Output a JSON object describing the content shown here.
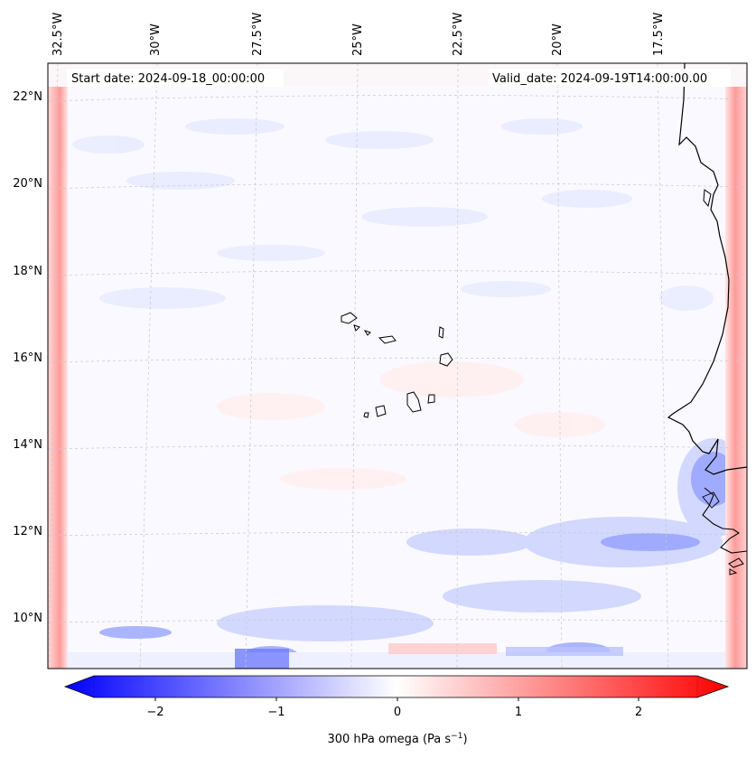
{
  "map": {
    "start_label": "Start date: 2024-09-18_00:00:00",
    "valid_label": "Valid_date: 2024-09-19T14:00:00.00",
    "lon_labels": [
      "32.5°W",
      "30°W",
      "27.5°W",
      "25°W",
      "22.5°W",
      "20°W",
      "17.5°W"
    ],
    "lat_labels": [
      "22°N",
      "20°N",
      "18°N",
      "16°N",
      "14°N",
      "12°N",
      "10°N"
    ]
  },
  "colorbar": {
    "ticks": [
      "−2",
      "−1",
      "0",
      "1",
      "2"
    ],
    "label_main": "300 hPa omega (Pa s",
    "label_exp": "−1",
    "label_close": ")",
    "colors": {
      "min": "#0000ff",
      "mid": "#ffffff",
      "max": "#ff0000"
    }
  }
}
